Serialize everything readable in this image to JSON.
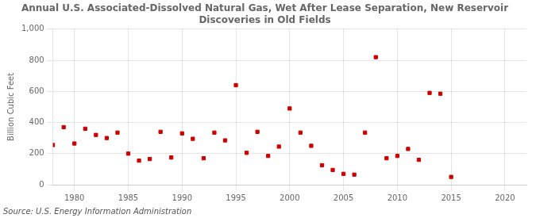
{
  "chart_data": {
    "type": "scatter",
    "title": "Annual U.S. Associated-Dissolved Natural Gas, Wet After Lease Separation, New Reservoir\nDiscoveries in Old Fields",
    "ylabel": "Billion Cubic Feet",
    "annotations": [
      "Source: U.S. Energy Information Administration"
    ],
    "x": [
      1978,
      1979,
      1980,
      1981,
      1982,
      1983,
      1984,
      1985,
      1986,
      1987,
      1988,
      1989,
      1990,
      1991,
      1992,
      1993,
      1994,
      1995,
      1996,
      1997,
      1998,
      1999,
      2000,
      2001,
      2002,
      2003,
      2004,
      2005,
      2006,
      2007,
      2008,
      2009,
      2010,
      2011,
      2012,
      2013,
      2014,
      2015
    ],
    "values": [
      255,
      370,
      265,
      360,
      320,
      300,
      335,
      200,
      155,
      165,
      340,
      175,
      330,
      295,
      170,
      335,
      285,
      640,
      205,
      340,
      185,
      245,
      490,
      335,
      250,
      125,
      95,
      70,
      65,
      335,
      820,
      170,
      185,
      230,
      160,
      590,
      585,
      50
    ],
    "color": "#cc0000",
    "marker": "square",
    "xlim": [
      1978,
      2022
    ],
    "xticks": [
      1980,
      1985,
      1990,
      1995,
      2000,
      2005,
      2010,
      2015,
      2020
    ],
    "ylim": [
      0,
      1000
    ],
    "yticks": [
      0,
      200,
      400,
      600,
      800,
      {
        "value": 1000,
        "label": "1,000"
      }
    ],
    "grid": true
  }
}
